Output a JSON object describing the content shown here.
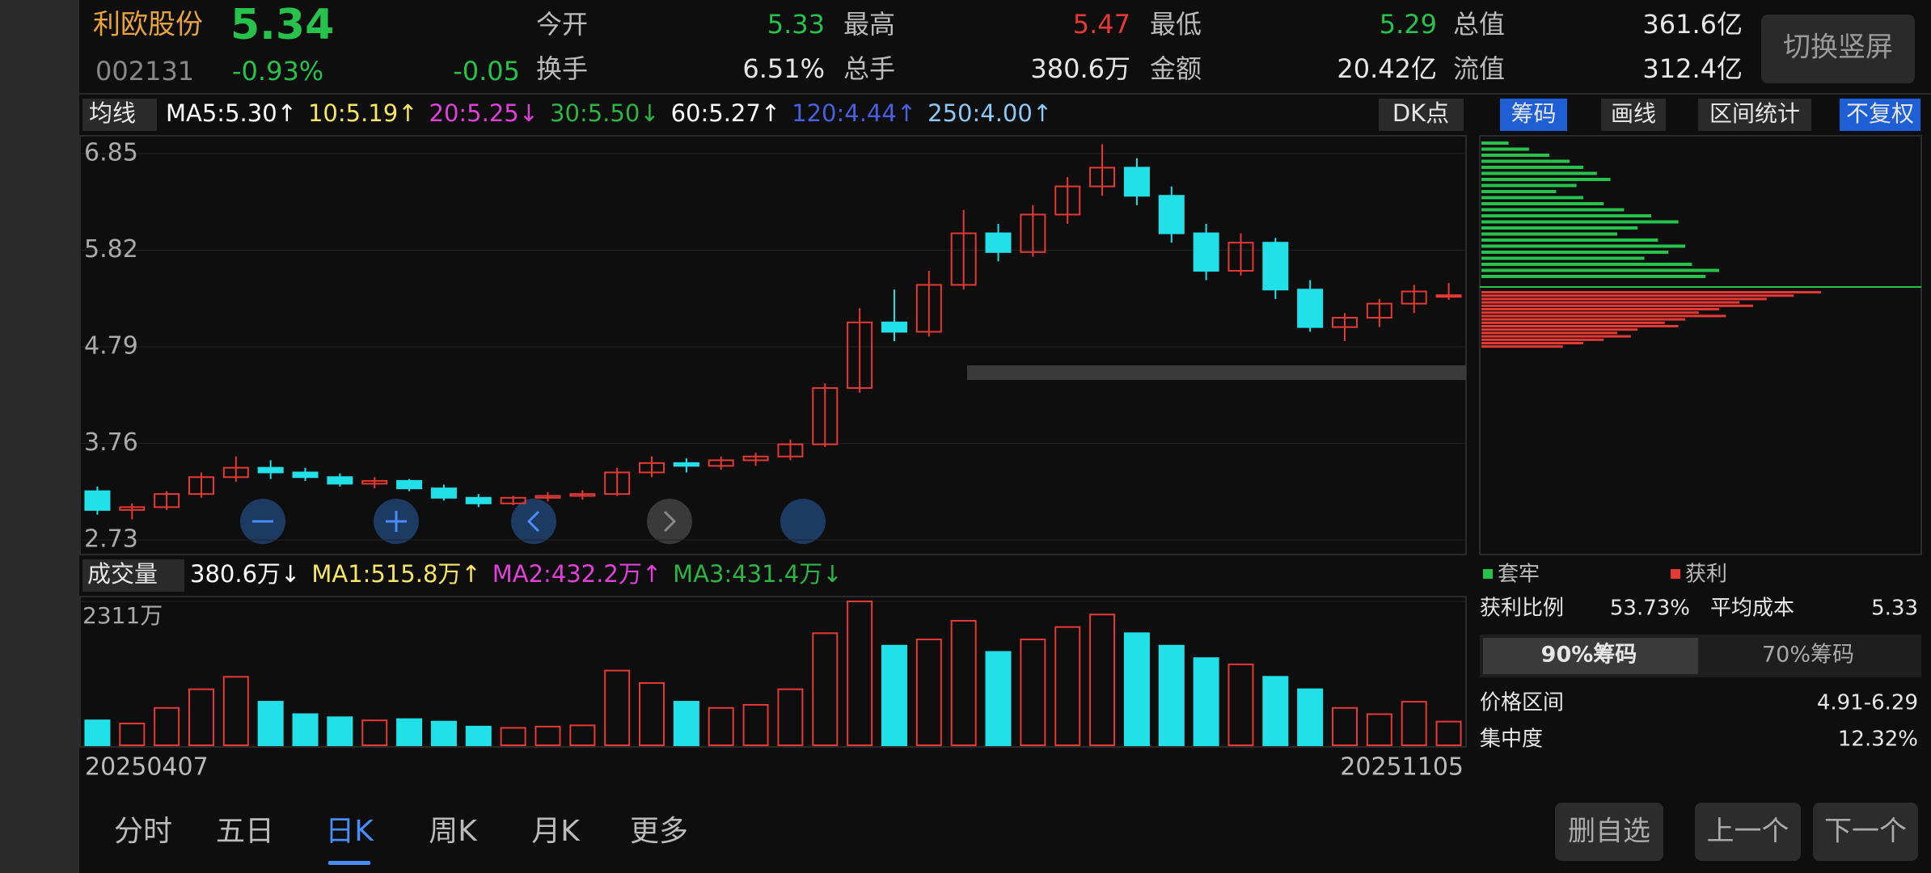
{
  "header": {
    "name": "利欧股份",
    "price": "5.34",
    "code": "002131",
    "change_pct": "-0.93%",
    "change": "-0.05",
    "stats": [
      {
        "label": "今开",
        "value": "5.33",
        "color": "#27c24c"
      },
      {
        "label": "换手",
        "value": "6.51%",
        "color": "#e6e6e6"
      },
      {
        "label": "最高",
        "value": "5.47",
        "color": "#e53935"
      },
      {
        "label": "总手",
        "value": "380.6万",
        "color": "#e6e6e6"
      },
      {
        "label": "最低",
        "value": "5.29",
        "color": "#27c24c"
      },
      {
        "label": "金额",
        "value": "20.42亿",
        "color": "#e6e6e6"
      },
      {
        "label": "总值",
        "value": "361.6亿",
        "color": "#e6e6e6"
      },
      {
        "label": "流值",
        "value": "312.4亿",
        "color": "#e6e6e6"
      }
    ],
    "button": "切换竖屏"
  },
  "ma_bar": {
    "selector": "均线",
    "items": [
      {
        "text": "MA5:5.30↑",
        "color": "#ffffff"
      },
      {
        "text": "10:5.19↑",
        "color": "#f5e663"
      },
      {
        "text": "20:5.25↓",
        "color": "#e040d8"
      },
      {
        "text": "30:5.50↓",
        "color": "#2fb344"
      },
      {
        "text": "60:5.27↑",
        "color": "#ffffff"
      },
      {
        "text": "120:4.44↑",
        "color": "#4a5fe0"
      },
      {
        "text": "250:4.00↑",
        "color": "#8ec8f5"
      }
    ],
    "dk": "DK点"
  },
  "right_tabs": [
    "筹码",
    "画线",
    "区间统计",
    "不复权"
  ],
  "kline": {
    "ylim": [
      2.73,
      6.85
    ],
    "yticks": [
      6.85,
      5.82,
      4.79,
      3.76,
      2.73
    ],
    "up_color": "#e53935",
    "down_color": "#22e0e8",
    "candles": [
      [
        3.25,
        3.3,
        3.0,
        3.05
      ],
      [
        3.05,
        3.12,
        2.95,
        3.08
      ],
      [
        3.08,
        3.25,
        3.05,
        3.22
      ],
      [
        3.22,
        3.45,
        3.18,
        3.4
      ],
      [
        3.4,
        3.62,
        3.35,
        3.5
      ],
      [
        3.5,
        3.58,
        3.38,
        3.45
      ],
      [
        3.45,
        3.5,
        3.36,
        3.4
      ],
      [
        3.4,
        3.44,
        3.3,
        3.33
      ],
      [
        3.33,
        3.4,
        3.28,
        3.36
      ],
      [
        3.36,
        3.38,
        3.25,
        3.28
      ],
      [
        3.28,
        3.32,
        3.15,
        3.18
      ],
      [
        3.18,
        3.22,
        3.08,
        3.12
      ],
      [
        3.12,
        3.2,
        3.1,
        3.18
      ],
      [
        3.18,
        3.24,
        3.14,
        3.2
      ],
      [
        3.2,
        3.26,
        3.16,
        3.22
      ],
      [
        3.22,
        3.5,
        3.2,
        3.45
      ],
      [
        3.45,
        3.62,
        3.4,
        3.55
      ],
      [
        3.55,
        3.6,
        3.45,
        3.52
      ],
      [
        3.52,
        3.62,
        3.48,
        3.58
      ],
      [
        3.58,
        3.66,
        3.52,
        3.62
      ],
      [
        3.62,
        3.8,
        3.58,
        3.75
      ],
      [
        3.75,
        4.4,
        3.72,
        4.35
      ],
      [
        4.35,
        5.2,
        4.3,
        5.05
      ],
      [
        5.05,
        5.4,
        4.85,
        4.95
      ],
      [
        4.95,
        5.6,
        4.9,
        5.45
      ],
      [
        5.45,
        6.25,
        5.4,
        6.0
      ],
      [
        6.0,
        6.1,
        5.7,
        5.8
      ],
      [
        5.8,
        6.3,
        5.75,
        6.2
      ],
      [
        6.2,
        6.6,
        6.1,
        6.5
      ],
      [
        6.5,
        6.95,
        6.4,
        6.7
      ],
      [
        6.7,
        6.8,
        6.3,
        6.4
      ],
      [
        6.4,
        6.5,
        5.9,
        6.0
      ],
      [
        6.0,
        6.1,
        5.5,
        5.6
      ],
      [
        5.6,
        6.0,
        5.55,
        5.9
      ],
      [
        5.9,
        5.95,
        5.3,
        5.4
      ],
      [
        5.4,
        5.5,
        4.95,
        5.0
      ],
      [
        5.0,
        5.15,
        4.85,
        5.1
      ],
      [
        5.1,
        5.3,
        5.0,
        5.25
      ],
      [
        5.25,
        5.45,
        5.15,
        5.38
      ],
      [
        5.33,
        5.47,
        5.29,
        5.34
      ]
    ]
  },
  "volume": {
    "title": "成交量",
    "items": [
      {
        "text": "380.6万↓",
        "color": "#ffffff"
      },
      {
        "text": "MA1:515.8万↑",
        "color": "#f5e663"
      },
      {
        "text": "MA2:432.2万↑",
        "color": "#e040d8"
      },
      {
        "text": "MA3:431.4万↓",
        "color": "#2fb344"
      }
    ],
    "ylim": [
      0,
      2311
    ],
    "yticks": [
      {
        "value": 2311,
        "label": "2311万"
      }
    ],
    "values": [
      400,
      350,
      600,
      900,
      1100,
      700,
      500,
      450,
      400,
      420,
      380,
      300,
      280,
      300,
      320,
      1200,
      1000,
      700,
      600,
      650,
      900,
      1800,
      2311,
      1600,
      1700,
      2000,
      1500,
      1700,
      1900,
      2100,
      1800,
      1600,
      1400,
      1300,
      1100,
      900,
      600,
      500,
      700,
      380.6
    ]
  },
  "dates": [
    "20250407",
    "20251105"
  ],
  "tabs": [
    "分时",
    "五日",
    "日K",
    "周K",
    "月K",
    "更多"
  ],
  "active_tab": 2,
  "chips": {
    "trapped": [
      8,
      14,
      20,
      26,
      30,
      34,
      38,
      28,
      22,
      30,
      36,
      42,
      50,
      58,
      46,
      40,
      52,
      60,
      55,
      48,
      62,
      70,
      66
    ],
    "profit": [
      100,
      92,
      84,
      76,
      80,
      70,
      64,
      72,
      60,
      54,
      58,
      46,
      40,
      44,
      36,
      30,
      24
    ]
  },
  "chip_panel": {
    "legend": [
      "套牢",
      "获利"
    ],
    "profit_ratio_label": "获利比例",
    "profit_ratio": "53.73%",
    "avg_cost_label": "平均成本",
    "avg_cost": "5.33",
    "tab1": "90%筹码",
    "tab2": "70%筹码",
    "range_label": "价格区间",
    "range": "4.91-6.29",
    "conc_label": "集中度",
    "conc": "12.32%"
  },
  "buttons": [
    "删自选",
    "上一个",
    "下一个"
  ]
}
